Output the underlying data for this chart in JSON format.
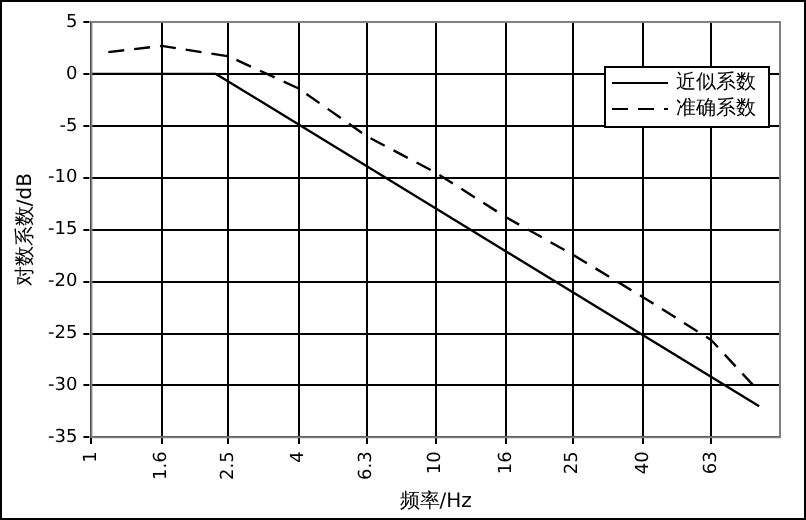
{
  "chart_data": {
    "type": "line",
    "xlabel": "频率/Hz",
    "ylabel": "对数系数/dB",
    "log": "x",
    "xlim": [
      1,
      100
    ],
    "xticks": [
      1,
      1.6,
      2.5,
      4,
      6.3,
      10,
      16,
      25,
      40,
      63
    ],
    "ylim": [
      -35,
      5
    ],
    "yticks": [
      -35,
      -30,
      -25,
      -20,
      -15,
      -10,
      -5,
      0,
      5
    ],
    "grid": true,
    "legend": "top right",
    "marker": "none",
    "series": [
      {
        "name": "近似系数",
        "color": "#000000",
        "line_style": "solid",
        "x": [
          1,
          2.3,
          87
        ],
        "values": [
          0,
          0,
          -32
        ]
      },
      {
        "name": "准确系数",
        "color": "#000000",
        "line_style": "dashed",
        "x": [
          1.12,
          1.6,
          2.5,
          4,
          6.3,
          10,
          16,
          25,
          40,
          63,
          87
        ],
        "values": [
          2.1,
          2.7,
          1.7,
          -1.4,
          -6,
          -9.5,
          -13.8,
          -17.4,
          -21.5,
          -25.6,
          -30.6
        ]
      }
    ]
  }
}
